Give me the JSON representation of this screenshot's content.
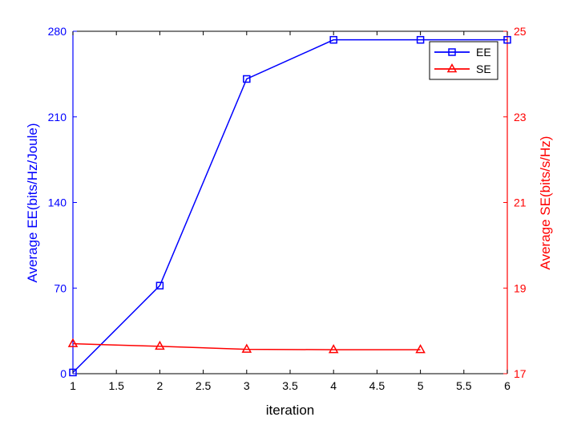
{
  "chart_data": {
    "type": "line",
    "xlabel": "iteration",
    "ylabel_left": "Average EE(bits/Hz/Joule)",
    "ylabel_right": "Average SE(bits/s/Hz)",
    "xlim": [
      1,
      6
    ],
    "ylim_left": [
      0,
      280
    ],
    "ylim_right": [
      17,
      25
    ],
    "x_ticks": [
      1,
      1.5,
      2,
      2.5,
      3,
      3.5,
      4,
      4.5,
      5,
      5.5,
      6
    ],
    "y_ticks_left": [
      0,
      70,
      140,
      210,
      280
    ],
    "y_ticks_right": [
      17,
      19,
      21,
      23,
      25
    ],
    "grid": false,
    "legend_position": "top-right",
    "series": [
      {
        "name": "EE",
        "axis": "left",
        "color": "#0000ff",
        "marker": "square",
        "x": [
          1,
          2,
          3,
          4,
          5,
          6
        ],
        "y": [
          1,
          72,
          241,
          273,
          273,
          273
        ]
      },
      {
        "name": "SE",
        "axis": "right",
        "color": "#ff0000",
        "marker": "triangle",
        "x": [
          1,
          2,
          3,
          4,
          5
        ],
        "y": [
          17.7,
          17.64,
          17.57,
          17.56,
          17.56
        ]
      }
    ]
  }
}
